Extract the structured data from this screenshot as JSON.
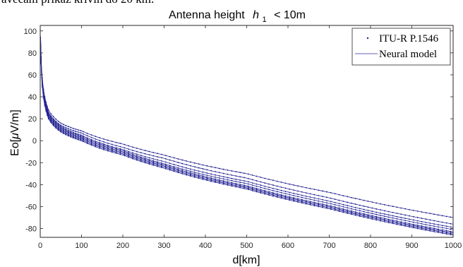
{
  "page": {
    "top_text": "avecam prikaz krivih do 20 km."
  },
  "chart_data": {
    "type": "line",
    "title": {
      "before": "Antenna height",
      "symbol": "h",
      "subscript": "1",
      "after": "< 10m"
    },
    "xlabel": "d[km]",
    "ylabel": {
      "before": "Eo[",
      "mu": "μ",
      "after": "V/m]"
    },
    "xlim": [
      0,
      1000
    ],
    "ylim": [
      -88,
      105
    ],
    "xticks": [
      0,
      100,
      200,
      300,
      400,
      500,
      600,
      700,
      800,
      900,
      1000
    ],
    "yticks": [
      -80,
      -60,
      -40,
      -20,
      0,
      20,
      40,
      60,
      80,
      100
    ],
    "grid": false,
    "legend_position": "top-right",
    "legend": [
      {
        "label": "ITU-R P.1546",
        "style": "dots"
      },
      {
        "label": "Neural model",
        "style": "line"
      }
    ],
    "line_color": "#2b2b9a",
    "dot_color": "#1c1c8c",
    "x": [
      1,
      5,
      10,
      20,
      50,
      100,
      200,
      300,
      500,
      700,
      1000
    ],
    "series": [
      {
        "values": [
          95,
          57,
          42,
          28,
          16,
          9,
          -3,
          -13,
          -30,
          -47,
          -70
        ]
      },
      {
        "values": [
          93,
          55,
          40,
          26,
          14,
          7,
          -6,
          -16,
          -34,
          -52,
          -76
        ]
      },
      {
        "values": [
          92,
          54,
          39,
          25,
          13,
          5,
          -8,
          -19,
          -37,
          -55,
          -79
        ]
      },
      {
        "values": [
          91,
          53,
          38,
          24,
          12,
          4,
          -9,
          -21,
          -39,
          -57,
          -81
        ]
      },
      {
        "values": [
          90,
          52,
          37,
          23,
          11,
          3,
          -10,
          -22,
          -41,
          -59,
          -83
        ]
      },
      {
        "values": [
          89,
          51,
          36,
          22,
          10,
          2,
          -11,
          -23,
          -42,
          -60,
          -84
        ]
      },
      {
        "values": [
          88,
          50,
          35,
          21,
          9,
          1,
          -12,
          -24,
          -43,
          -61,
          -85
        ]
      },
      {
        "values": [
          87,
          49,
          34,
          20,
          8,
          0,
          -13,
          -25,
          -44,
          -62,
          -86
        ]
      }
    ]
  }
}
